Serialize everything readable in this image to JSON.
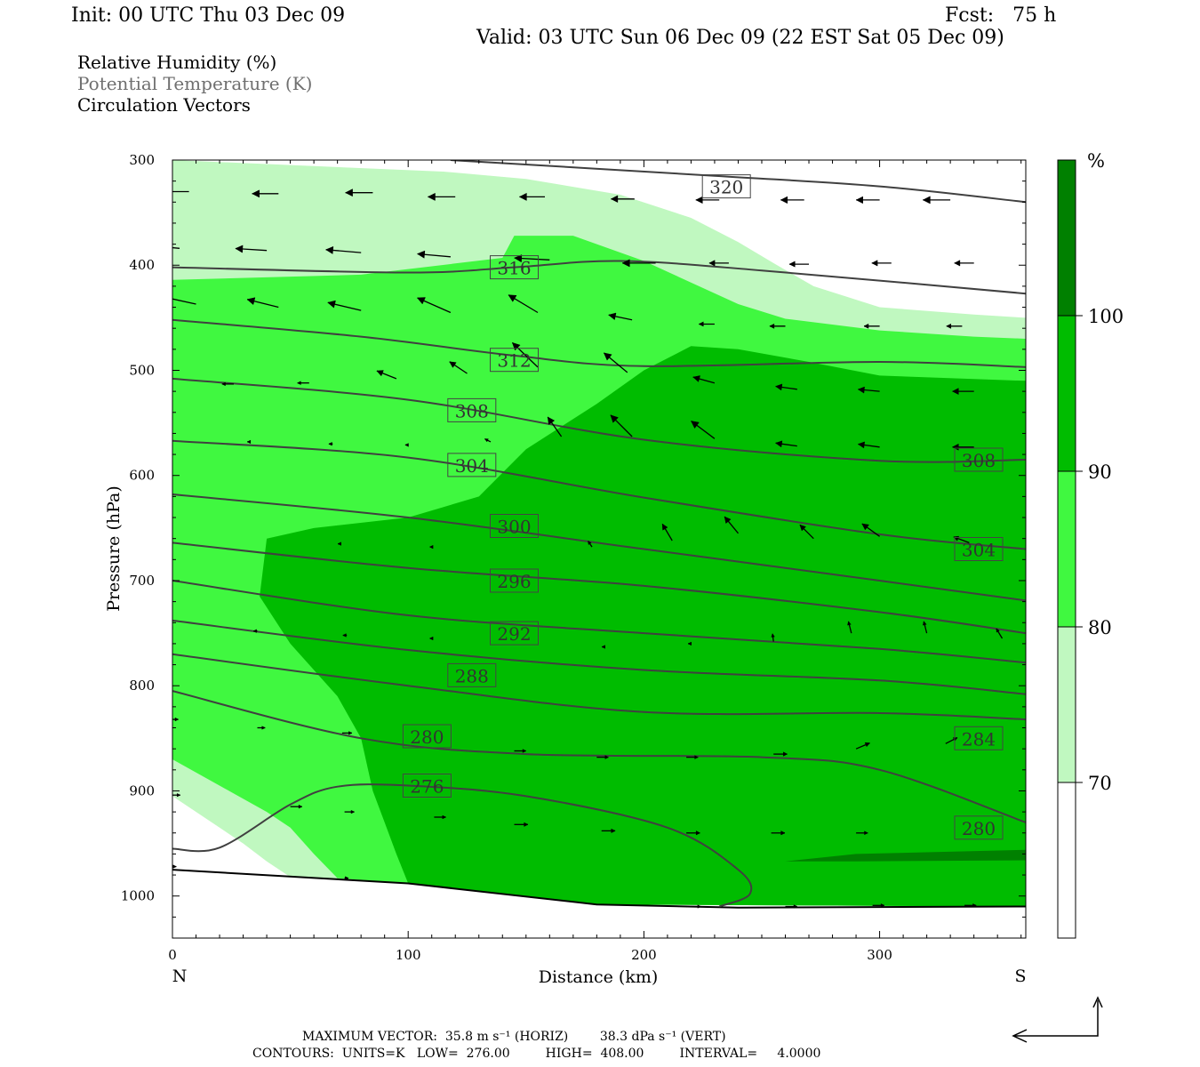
{
  "header": {
    "init": "Init: 00 UTC Thu 03 Dec 09",
    "fcst": "Fcst:   75 h",
    "valid": "Valid: 03 UTC Sun 06 Dec 09 (22 EST Sat 05 Dec 09)"
  },
  "legend": {
    "rh": "Relative Humidity (%)",
    "theta": "Potential Temperature (K)",
    "vectors": "Circulation Vectors"
  },
  "footer": {
    "max_vector_line": "MAXIMUM VECTOR:  35.8 m s⁻¹ (HORIZ)        38.3 dPa s⁻¹ (VERT)",
    "contours_line": "CONTOURS:  UNITS=K   LOW=  276.00         HIGH=  408.00         INTERVAL=     4.0000"
  },
  "colors": {
    "rh_70": "#c0f8c0",
    "rh_80": "#40f840",
    "rh_90": "#00bc00",
    "rh_100": "#008000",
    "contour": "#404040",
    "vector": "#000000"
  },
  "chart_data": {
    "type": "cross-section",
    "xlabel": "Distance (km)",
    "ylabel": "Pressure (hPa)",
    "x_ticks": [
      "0",
      "100",
      "200",
      "300"
    ],
    "x_endpoints": {
      "left": "N",
      "right": "S"
    },
    "y_ticks": [
      "300",
      "400",
      "500",
      "600",
      "700",
      "800",
      "900",
      "1000"
    ],
    "xlim": [
      0,
      362
    ],
    "ylim": [
      1040,
      300
    ],
    "y_scale": "linear",
    "colorbar": {
      "unit": "%",
      "levels": [
        "70",
        "80",
        "90",
        "100"
      ]
    },
    "theta_contour_labels": [
      {
        "value": "320",
        "x": 235,
        "p": 325
      },
      {
        "value": "316",
        "x": 145,
        "p": 402
      },
      {
        "value": "312",
        "x": 145,
        "p": 490
      },
      {
        "value": "308",
        "x": 127,
        "p": 538
      },
      {
        "value": "304",
        "x": 127,
        "p": 590
      },
      {
        "value": "300",
        "x": 145,
        "p": 648
      },
      {
        "value": "296",
        "x": 145,
        "p": 700
      },
      {
        "value": "292",
        "x": 145,
        "p": 750
      },
      {
        "value": "288",
        "x": 127,
        "p": 790
      },
      {
        "value": "280",
        "x": 108,
        "p": 848
      },
      {
        "value": "276",
        "x": 108,
        "p": 895
      },
      {
        "value": "308",
        "x": 342,
        "p": 585
      },
      {
        "value": "304",
        "x": 342,
        "p": 670
      },
      {
        "value": "284",
        "x": 342,
        "p": 850
      },
      {
        "value": "280",
        "x": 342,
        "p": 935
      }
    ],
    "theta_contours": [
      {
        "value": 320,
        "points": [
          [
            118,
            300
          ],
          [
            230,
            315
          ],
          [
            300,
            325
          ],
          [
            362,
            340
          ]
        ]
      },
      {
        "value": 316,
        "points": [
          [
            0,
            402
          ],
          [
            100,
            407
          ],
          [
            145,
            402
          ],
          [
            190,
            396
          ],
          [
            250,
            405
          ],
          [
            362,
            427
          ]
        ]
      },
      {
        "value": 312,
        "points": [
          [
            0,
            452
          ],
          [
            80,
            468
          ],
          [
            145,
            486
          ],
          [
            200,
            496
          ],
          [
            300,
            492
          ],
          [
            362,
            497
          ]
        ]
      },
      {
        "value": 308,
        "points": [
          [
            0,
            508
          ],
          [
            100,
            528
          ],
          [
            200,
            566
          ],
          [
            300,
            586
          ],
          [
            362,
            585
          ]
        ]
      },
      {
        "value": 304,
        "points": [
          [
            0,
            567
          ],
          [
            100,
            583
          ],
          [
            200,
            621
          ],
          [
            300,
            656
          ],
          [
            362,
            670
          ]
        ]
      },
      {
        "value": 300,
        "points": [
          [
            0,
            618
          ],
          [
            100,
            640
          ],
          [
            200,
            670
          ],
          [
            300,
            700
          ],
          [
            362,
            719
          ]
        ]
      },
      {
        "value": 296,
        "points": [
          [
            0,
            664
          ],
          [
            100,
            688
          ],
          [
            200,
            705
          ],
          [
            300,
            730
          ],
          [
            362,
            750
          ]
        ]
      },
      {
        "value": 292,
        "points": [
          [
            0,
            700
          ],
          [
            100,
            733
          ],
          [
            200,
            750
          ],
          [
            300,
            765
          ],
          [
            362,
            778
          ]
        ]
      },
      {
        "value": 288,
        "points": [
          [
            0,
            738
          ],
          [
            100,
            766
          ],
          [
            200,
            785
          ],
          [
            300,
            795
          ],
          [
            362,
            808
          ]
        ]
      },
      {
        "value": 284,
        "points": [
          [
            0,
            770
          ],
          [
            100,
            800
          ],
          [
            200,
            825
          ],
          [
            300,
            826
          ],
          [
            362,
            832
          ]
        ]
      },
      {
        "value": 280,
        "points": [
          [
            0,
            805
          ],
          [
            80,
            850
          ],
          [
            150,
            865
          ],
          [
            250,
            868
          ],
          [
            300,
            880
          ],
          [
            362,
            930
          ]
        ]
      },
      {
        "value": 276,
        "points": [
          [
            0,
            955
          ],
          [
            20,
            954
          ],
          [
            50,
            913
          ],
          [
            70,
            896
          ],
          [
            100,
            895
          ],
          [
            150,
            905
          ],
          [
            210,
            935
          ],
          [
            240,
            975
          ],
          [
            245,
            998
          ],
          [
            232,
            1010
          ]
        ]
      }
    ],
    "terrain_p": [
      [
        0,
        975
      ],
      [
        100,
        988
      ],
      [
        180,
        1008
      ],
      [
        240,
        1011
      ],
      [
        362,
        1010
      ]
    ],
    "rh_regions": [
      {
        "level": 70,
        "points": [
          [
            0,
            300
          ],
          [
            115,
            311
          ],
          [
            150,
            318
          ],
          [
            190,
            333
          ],
          [
            220,
            355
          ],
          [
            240,
            378
          ],
          [
            255,
            398
          ],
          [
            272,
            420
          ],
          [
            300,
            440
          ],
          [
            340,
            447
          ],
          [
            362,
            450
          ],
          [
            362,
            1010
          ],
          [
            180,
            1008
          ],
          [
            100,
            988
          ],
          [
            50,
            982
          ],
          [
            40,
            967
          ],
          [
            30,
            950
          ],
          [
            20,
            935
          ],
          [
            0,
            905
          ]
        ]
      },
      {
        "level": 80,
        "points": [
          [
            0,
            414
          ],
          [
            80,
            409
          ],
          [
            140,
            393
          ],
          [
            145,
            372
          ],
          [
            170,
            372
          ],
          [
            200,
            396
          ],
          [
            240,
            437
          ],
          [
            260,
            451
          ],
          [
            300,
            462
          ],
          [
            340,
            468
          ],
          [
            362,
            470
          ],
          [
            362,
            1010
          ],
          [
            180,
            1008
          ],
          [
            100,
            988
          ],
          [
            70,
            983
          ],
          [
            60,
            960
          ],
          [
            50,
            935
          ],
          [
            40,
            920
          ],
          [
            0,
            870
          ]
        ]
      },
      {
        "level": 90,
        "points": [
          [
            40,
            660
          ],
          [
            60,
            650
          ],
          [
            100,
            640
          ],
          [
            115,
            630
          ],
          [
            130,
            620
          ],
          [
            150,
            575
          ],
          [
            180,
            532
          ],
          [
            200,
            500
          ],
          [
            220,
            477
          ],
          [
            240,
            480
          ],
          [
            270,
            492
          ],
          [
            300,
            505
          ],
          [
            362,
            510
          ],
          [
            362,
            1010
          ],
          [
            180,
            1008
          ],
          [
            100,
            988
          ],
          [
            95,
            960
          ],
          [
            90,
            930
          ],
          [
            85,
            900
          ],
          [
            80,
            850
          ],
          [
            70,
            810
          ],
          [
            50,
            760
          ],
          [
            37,
            715
          ]
        ]
      },
      {
        "level": 100,
        "points": [
          [
            260,
            967
          ],
          [
            290,
            960
          ],
          [
            362,
            956
          ],
          [
            362,
            966
          ],
          [
            290,
            967
          ]
        ]
      }
    ],
    "vectors": [
      [
        7,
        330,
        30,
        0
      ],
      [
        45,
        332,
        27,
        0
      ],
      [
        85,
        331,
        28,
        0
      ],
      [
        120,
        335,
        28,
        0
      ],
      [
        158,
        335,
        26,
        0
      ],
      [
        196,
        337,
        24,
        0
      ],
      [
        232,
        338,
        24,
        0
      ],
      [
        268,
        338,
        24,
        0
      ],
      [
        300,
        338,
        24,
        0
      ],
      [
        330,
        338,
        28,
        0
      ],
      [
        3,
        384,
        32,
        -3
      ],
      [
        40,
        386,
        32,
        -2
      ],
      [
        80,
        388,
        36,
        -3
      ],
      [
        118,
        392,
        34,
        -3
      ],
      [
        160,
        395,
        36,
        -2
      ],
      [
        205,
        398,
        34,
        0
      ],
      [
        236,
        398,
        20,
        0
      ],
      [
        270,
        399,
        20,
        0
      ],
      [
        305,
        398,
        20,
        0
      ],
      [
        340,
        398,
        20,
        0
      ],
      [
        10,
        437,
        32,
        -7
      ],
      [
        45,
        440,
        32,
        -8
      ],
      [
        80,
        443,
        34,
        -8
      ],
      [
        118,
        445,
        34,
        -15
      ],
      [
        155,
        445,
        30,
        -18
      ],
      [
        195,
        452,
        24,
        -5
      ],
      [
        230,
        456,
        16,
        0
      ],
      [
        260,
        458,
        16,
        0
      ],
      [
        300,
        458,
        16,
        0
      ],
      [
        335,
        458,
        16,
        0
      ],
      [
        26,
        513,
        12,
        0
      ],
      [
        58,
        512,
        12,
        0
      ],
      [
        95,
        508,
        20,
        -8
      ],
      [
        125,
        503,
        18,
        -12
      ],
      [
        155,
        497,
        26,
        -25
      ],
      [
        193,
        502,
        24,
        -20
      ],
      [
        230,
        512,
        22,
        -6
      ],
      [
        265,
        518,
        22,
        -3
      ],
      [
        300,
        520,
        22,
        -2
      ],
      [
        340,
        520,
        22,
        0
      ],
      [
        33,
        568,
        3,
        0
      ],
      [
        68,
        570,
        4,
        0
      ],
      [
        100,
        571,
        3,
        0
      ],
      [
        135,
        568,
        6,
        -3
      ],
      [
        165,
        563,
        14,
        -20
      ],
      [
        195,
        563,
        22,
        -22
      ],
      [
        230,
        565,
        24,
        -18
      ],
      [
        265,
        572,
        22,
        -3
      ],
      [
        300,
        573,
        22,
        -3
      ],
      [
        340,
        573,
        22,
        0
      ],
      [
        35,
        655,
        0,
        0
      ],
      [
        71,
        665,
        2,
        0
      ],
      [
        110,
        668,
        2,
        0
      ],
      [
        178,
        668,
        4,
        -6
      ],
      [
        212,
        662,
        10,
        -17
      ],
      [
        240,
        655,
        14,
        -17
      ],
      [
        272,
        660,
        14,
        -14
      ],
      [
        300,
        658,
        18,
        -13
      ],
      [
        338,
        664,
        16,
        -6
      ],
      [
        0,
        745,
        3,
        0
      ],
      [
        36,
        748,
        4,
        0
      ],
      [
        74,
        752,
        4,
        0
      ],
      [
        110,
        755,
        2,
        0
      ],
      [
        183,
        763,
        2,
        0
      ],
      [
        220,
        760,
        3,
        0
      ],
      [
        255,
        758,
        1,
        -8
      ],
      [
        288,
        750,
        3,
        -12
      ],
      [
        320,
        750,
        3,
        -12
      ],
      [
        352,
        755,
        6,
        -10
      ],
      [
        0,
        832,
        6,
        0
      ],
      [
        36,
        840,
        8,
        0
      ],
      [
        72,
        845,
        10,
        0
      ],
      [
        145,
        862,
        12,
        0
      ],
      [
        180,
        868,
        12,
        0
      ],
      [
        218,
        868,
        12,
        0
      ],
      [
        255,
        865,
        14,
        0
      ],
      [
        290,
        860,
        14,
        -6
      ],
      [
        328,
        855,
        12,
        -6
      ],
      [
        0,
        904,
        8,
        0
      ],
      [
        50,
        915,
        12,
        0
      ],
      [
        73,
        920,
        10,
        0
      ],
      [
        111,
        925,
        12,
        0
      ],
      [
        145,
        932,
        14,
        0
      ],
      [
        182,
        938,
        14,
        0
      ],
      [
        218,
        940,
        14,
        0
      ],
      [
        254,
        940,
        14,
        0
      ],
      [
        290,
        940,
        12,
        0
      ],
      [
        0,
        972,
        4,
        0
      ],
      [
        73,
        983,
        4,
        0
      ],
      [
        220,
        1010,
        10,
        0
      ],
      [
        260,
        1010,
        12,
        0
      ],
      [
        297,
        1009,
        12,
        0
      ],
      [
        336,
        1009,
        12,
        0
      ]
    ],
    "reference_vector": {
      "horiz": "35.8 m s⁻¹",
      "vert": "38.3 dPa s⁻¹"
    }
  }
}
